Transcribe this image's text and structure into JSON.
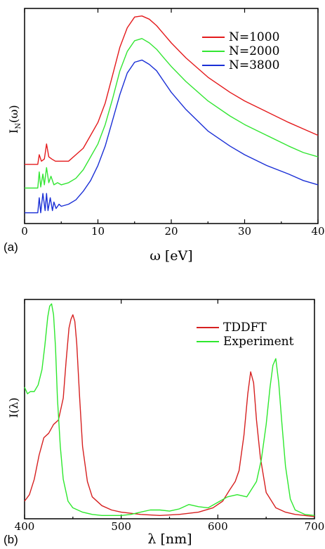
{
  "chart_data": [
    {
      "type": "line",
      "panel_label": "(a)",
      "xlabel": "ω [eV]",
      "ylabel_main": "I",
      "ylabel_sub": "N",
      "ylabel_tail": "(ω)",
      "xlim": [
        0,
        40
      ],
      "x_ticks": [
        0,
        10,
        20,
        30,
        40
      ],
      "ylim": [
        0,
        1
      ],
      "y_tick_labels": false,
      "grid": false,
      "legend_position": "top-right",
      "series": [
        {
          "name": "N=1000",
          "color": "#e41a1c",
          "x": [
            0,
            1.8,
            2.0,
            2.3,
            2.7,
            3.0,
            3.3,
            3.7,
            4.2,
            5.0,
            6.0,
            7.0,
            8.0,
            9.0,
            10.0,
            11.0,
            12.0,
            13.0,
            14.0,
            15.0,
            16.0,
            17.0,
            18.0,
            19.0,
            20.0,
            22.0,
            25.0,
            28.0,
            30.0,
            33.0,
            36.0,
            38.0,
            40.0
          ],
          "y": [
            0.275,
            0.275,
            0.32,
            0.29,
            0.3,
            0.37,
            0.31,
            0.3,
            0.29,
            0.29,
            0.29,
            0.32,
            0.35,
            0.41,
            0.47,
            0.56,
            0.69,
            0.82,
            0.91,
            0.96,
            0.965,
            0.95,
            0.92,
            0.88,
            0.84,
            0.77,
            0.68,
            0.61,
            0.57,
            0.52,
            0.47,
            0.44,
            0.41
          ]
        },
        {
          "name": "N=2000",
          "color": "#33e633",
          "x": [
            0,
            1.8,
            2.0,
            2.2,
            2.5,
            2.7,
            3.0,
            3.3,
            3.6,
            4.0,
            4.5,
            5.0,
            6.0,
            7.0,
            8.0,
            9.0,
            10.0,
            11.0,
            12.0,
            13.0,
            14.0,
            15.0,
            16.0,
            17.0,
            18.0,
            19.0,
            20.0,
            22.0,
            25.0,
            28.0,
            30.0,
            33.0,
            36.0,
            38.0,
            40.0
          ],
          "y": [
            0.165,
            0.165,
            0.24,
            0.17,
            0.23,
            0.18,
            0.26,
            0.19,
            0.22,
            0.18,
            0.19,
            0.18,
            0.19,
            0.21,
            0.25,
            0.31,
            0.37,
            0.46,
            0.58,
            0.71,
            0.8,
            0.85,
            0.86,
            0.84,
            0.81,
            0.77,
            0.73,
            0.66,
            0.57,
            0.5,
            0.46,
            0.41,
            0.36,
            0.33,
            0.31
          ]
        },
        {
          "name": "N=3800",
          "color": "#1a2fd6",
          "x": [
            0,
            1.8,
            2.0,
            2.2,
            2.5,
            2.8,
            3.0,
            3.2,
            3.5,
            3.8,
            4.0,
            4.3,
            4.7,
            5.0,
            6.0,
            7.0,
            8.0,
            9.0,
            10.0,
            11.0,
            12.0,
            13.0,
            14.0,
            15.0,
            16.0,
            17.0,
            18.0,
            19.0,
            20.0,
            22.0,
            25.0,
            28.0,
            30.0,
            33.0,
            36.0,
            38.0,
            40.0
          ],
          "y": [
            0.05,
            0.05,
            0.12,
            0.05,
            0.14,
            0.06,
            0.14,
            0.06,
            0.12,
            0.06,
            0.1,
            0.07,
            0.09,
            0.08,
            0.09,
            0.11,
            0.15,
            0.2,
            0.27,
            0.36,
            0.48,
            0.6,
            0.7,
            0.75,
            0.76,
            0.74,
            0.71,
            0.66,
            0.61,
            0.53,
            0.43,
            0.36,
            0.32,
            0.27,
            0.23,
            0.2,
            0.18
          ]
        }
      ]
    },
    {
      "type": "line",
      "panel_label": "(b)",
      "xlabel": "λ [nm]",
      "ylabel": "I(λ)",
      "xlim": [
        400,
        700
      ],
      "x_ticks": [
        400,
        500,
        600,
        700
      ],
      "ylim": [
        0,
        1
      ],
      "y_tick_labels": false,
      "grid": false,
      "legend_position": "top-right",
      "series": [
        {
          "name": "TDDFT",
          "color": "#d62020",
          "x": [
            400,
            405,
            410,
            415,
            420,
            425,
            430,
            435,
            440,
            443,
            446,
            448,
            450,
            452,
            454,
            457,
            460,
            465,
            470,
            480,
            490,
            500,
            520,
            540,
            560,
            580,
            595,
            605,
            612,
            618,
            622,
            627,
            631,
            634,
            637,
            640,
            644,
            650,
            660,
            670,
            680,
            690,
            700
          ],
          "y": [
            0.08,
            0.11,
            0.18,
            0.29,
            0.37,
            0.39,
            0.43,
            0.45,
            0.55,
            0.72,
            0.87,
            0.91,
            0.93,
            0.9,
            0.8,
            0.55,
            0.33,
            0.17,
            0.1,
            0.06,
            0.04,
            0.03,
            0.02,
            0.015,
            0.02,
            0.03,
            0.05,
            0.08,
            0.13,
            0.17,
            0.22,
            0.38,
            0.57,
            0.67,
            0.62,
            0.45,
            0.28,
            0.12,
            0.05,
            0.03,
            0.02,
            0.015,
            0.01
          ]
        },
        {
          "name": "Experiment",
          "color": "#2ee82e",
          "x": [
            400,
            403,
            406,
            410,
            414,
            418,
            421,
            424,
            426,
            428,
            430,
            432,
            434,
            437,
            440,
            445,
            450,
            460,
            470,
            480,
            490,
            500,
            510,
            520,
            530,
            540,
            550,
            560,
            570,
            580,
            590,
            600,
            610,
            620,
            630,
            640,
            645,
            650,
            654,
            657,
            660,
            663,
            666,
            670,
            675,
            680,
            690,
            700
          ],
          "y": [
            0.6,
            0.57,
            0.58,
            0.58,
            0.61,
            0.68,
            0.79,
            0.92,
            0.97,
            0.98,
            0.93,
            0.78,
            0.55,
            0.33,
            0.18,
            0.08,
            0.05,
            0.03,
            0.02,
            0.015,
            0.015,
            0.015,
            0.02,
            0.03,
            0.04,
            0.04,
            0.035,
            0.045,
            0.065,
            0.055,
            0.05,
            0.075,
            0.1,
            0.11,
            0.1,
            0.17,
            0.27,
            0.43,
            0.6,
            0.7,
            0.73,
            0.62,
            0.45,
            0.24,
            0.09,
            0.04,
            0.02,
            0.015
          ]
        }
      ]
    }
  ]
}
